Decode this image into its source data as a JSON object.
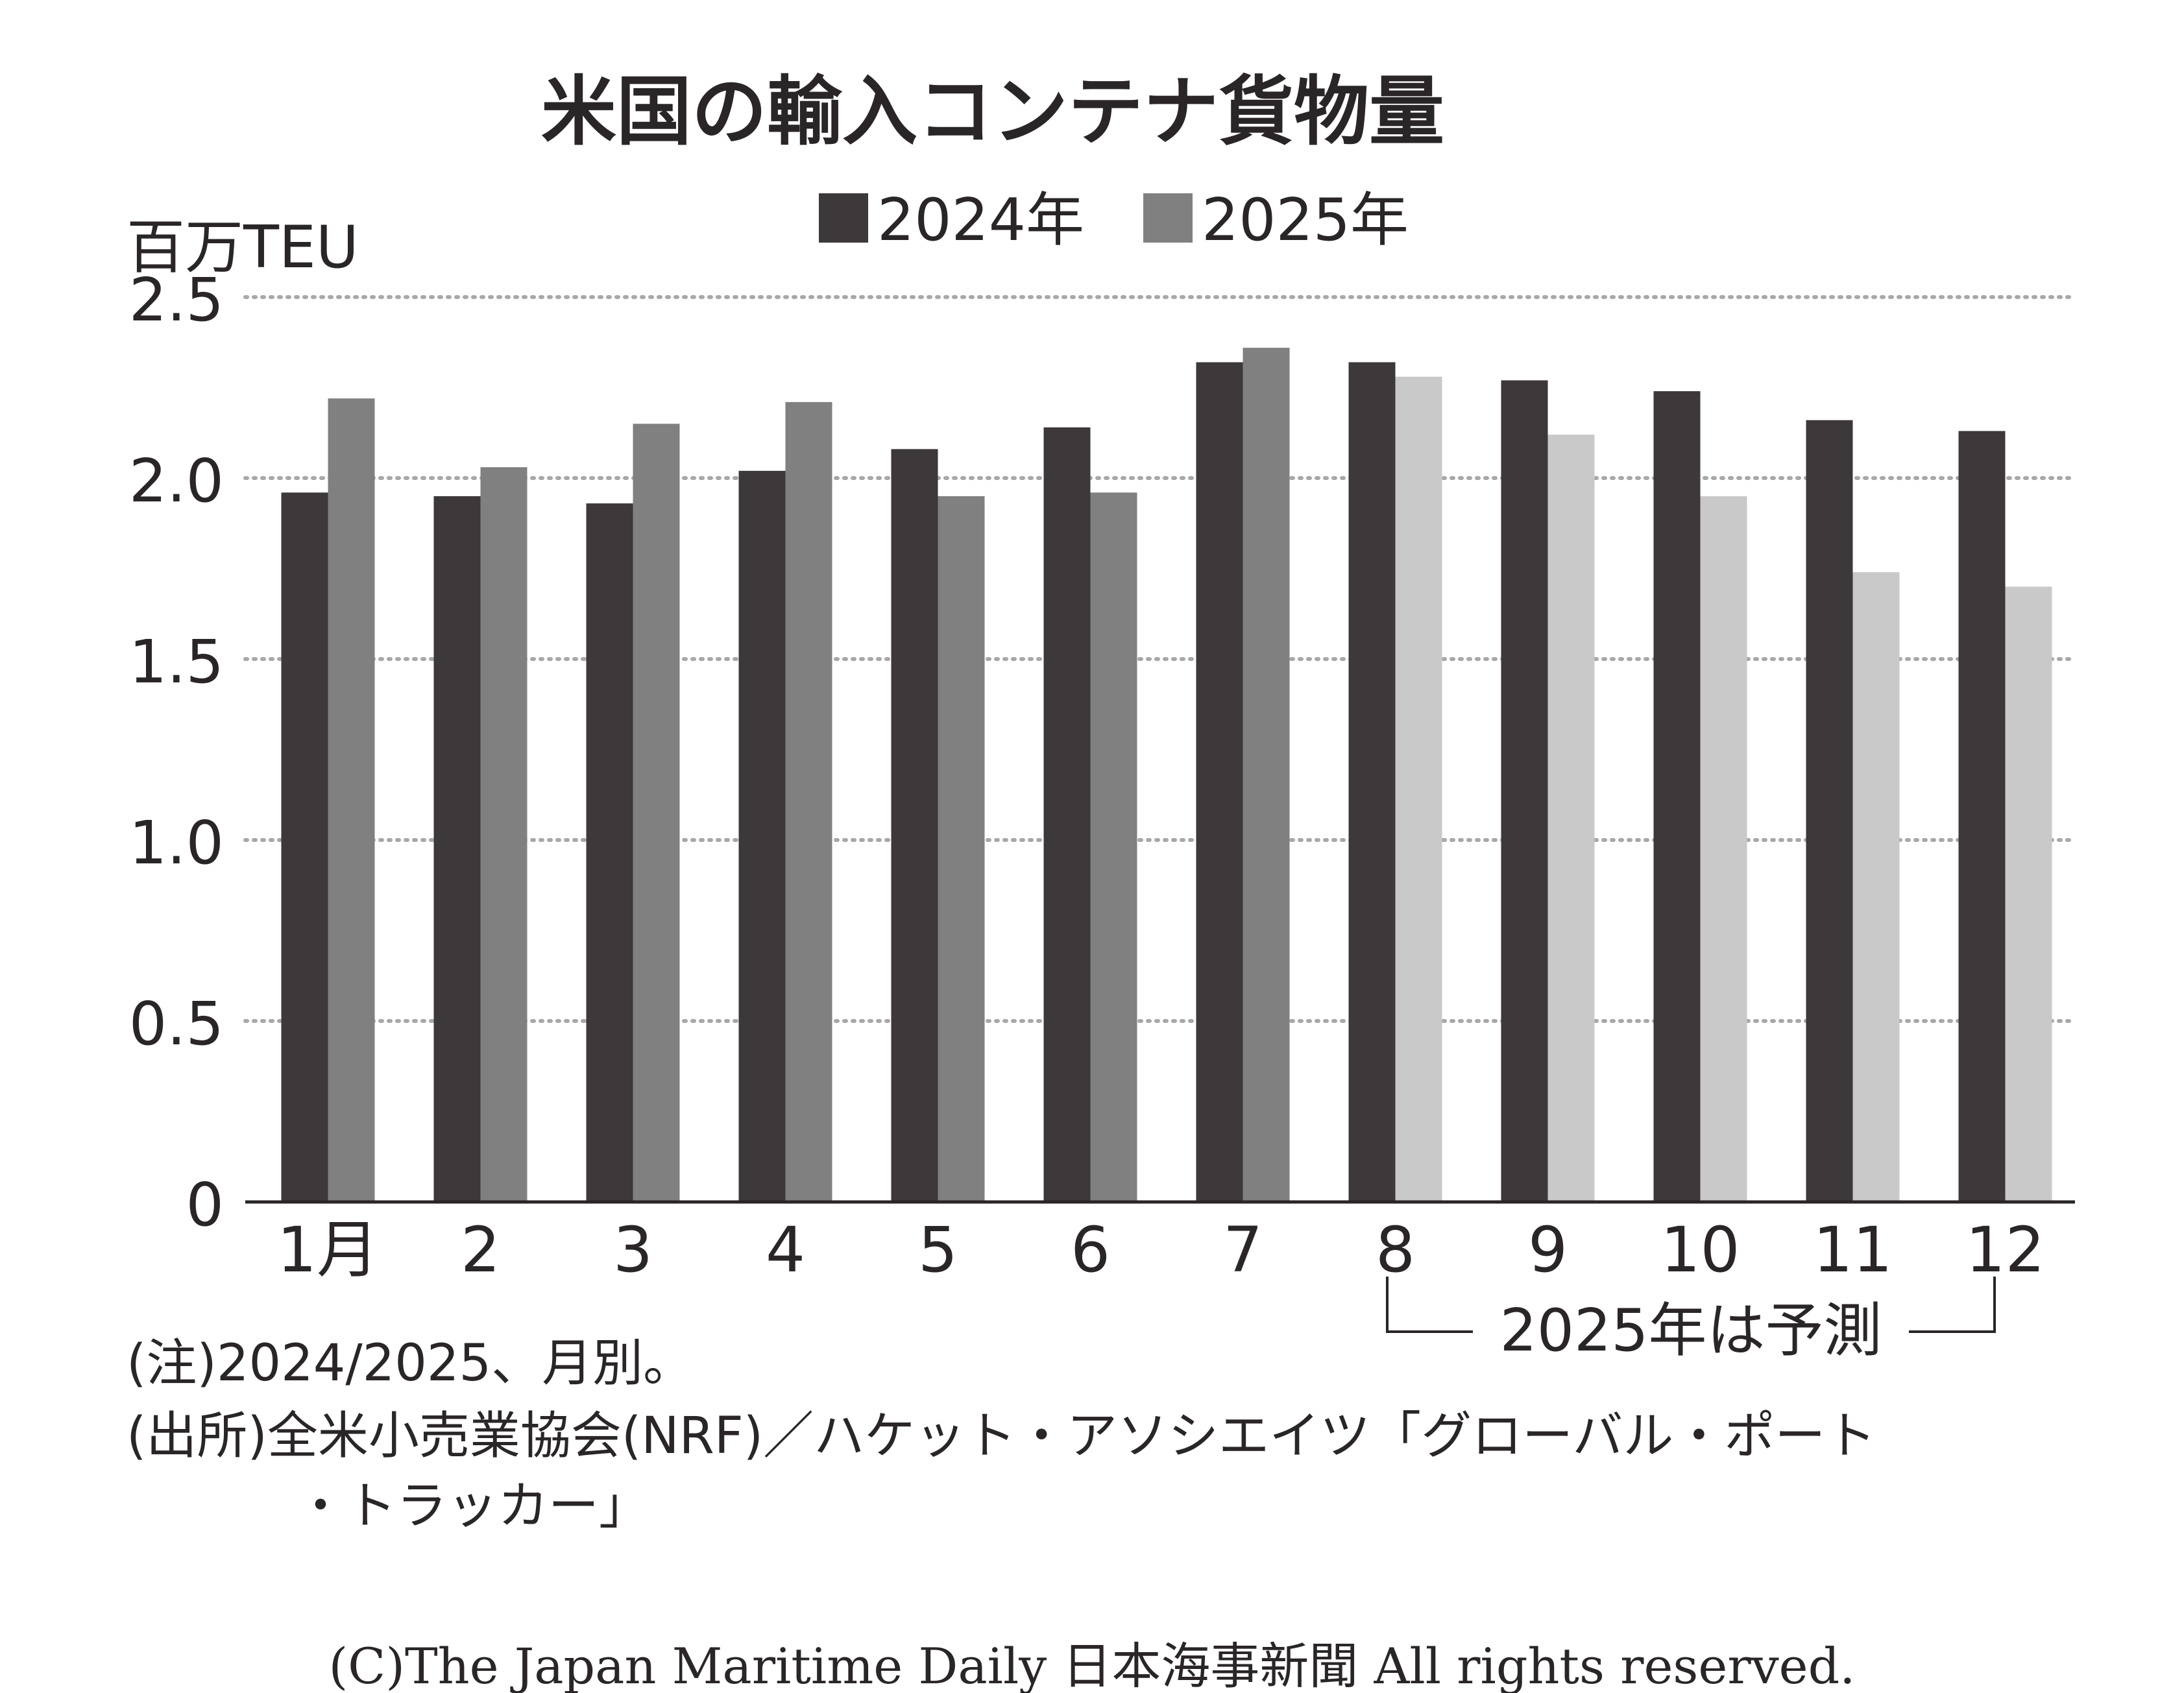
{
  "chart_data": {
    "type": "bar",
    "title": "米国の輸入コンテナ貨物量",
    "ylabel": "百万TEU",
    "ylim": [
      0,
      2.5
    ],
    "yticks": [
      {
        "value": 0,
        "label": "0"
      },
      {
        "value": 0.5,
        "label": "0.5"
      },
      {
        "value": 1.0,
        "label": "1.0"
      },
      {
        "value": 1.5,
        "label": "1.5"
      },
      {
        "value": 2.0,
        "label": "2.0"
      },
      {
        "value": 2.5,
        "label": "2.5"
      }
    ],
    "grid": "dotted-horizontal",
    "legend_position": "top-center",
    "categories": [
      "1月",
      "2",
      "3",
      "4",
      "5",
      "6",
      "7",
      "8",
      "9",
      "10",
      "11",
      "12"
    ],
    "series": [
      {
        "name": "2024年",
        "color": "#3d3839",
        "values": [
          1.96,
          1.95,
          1.93,
          2.02,
          2.08,
          2.14,
          2.32,
          2.32,
          2.27,
          2.24,
          2.16,
          2.13
        ]
      },
      {
        "name": "2025年",
        "color": "#808080",
        "forecast_color": "#c9c9c9",
        "forecast_from_index": 7,
        "values": [
          2.22,
          2.03,
          2.15,
          2.21,
          1.95,
          1.96,
          2.36,
          2.28,
          2.12,
          1.95,
          1.74,
          1.7
        ]
      }
    ],
    "forecast_annotation": "2025年は予測"
  },
  "notes": [
    "(注)2024/2025、月別。",
    "(出所)全米小売業協会(NRF)／ハケット・アソシエイツ「グローバル・ポート",
    "・トラッカー」"
  ],
  "copyright": "(C)The Japan Maritime Daily 日本海事新聞 All rights reserved."
}
